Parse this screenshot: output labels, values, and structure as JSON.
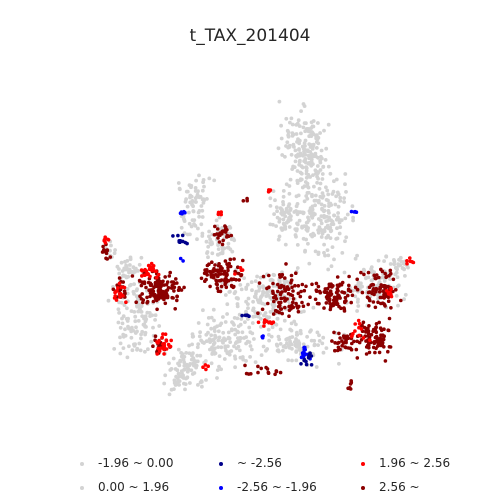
{
  "title": "t_TAX_201404",
  "legend": [
    {
      "label": "-1.96 ~ 0.00",
      "color": "#d3d3d3",
      "class_name": "not-significant-negative"
    },
    {
      "label": "0.00 ~ 1.96",
      "color": "#d3d3d3",
      "class_name": "not-significant-positive"
    },
    {
      "label": "~ -2.56",
      "color": "#00008b",
      "class_name": "cold-99"
    },
    {
      "label": "-2.56 ~ -1.96",
      "color": "#0000ff",
      "class_name": "cold-95"
    },
    {
      "label": "1.96 ~ 2.56",
      "color": "#ff0000",
      "class_name": "hot-95"
    },
    {
      "label": "2.56 ~",
      "color": "#8b0000",
      "class_name": "hot-99"
    }
  ]
}
